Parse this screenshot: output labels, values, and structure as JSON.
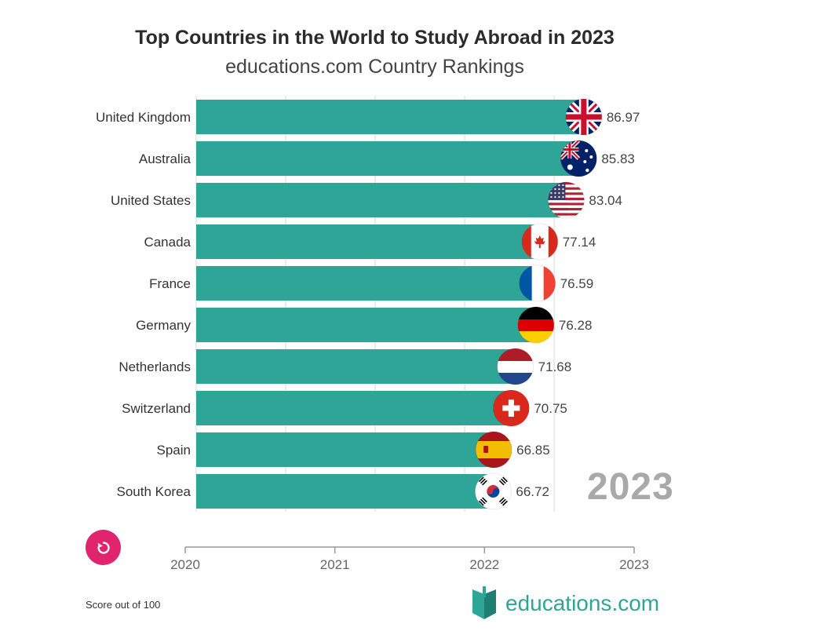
{
  "header": {
    "title": "Top Countries in the World to Study Abroad in 2023",
    "subtitle": "educations.com Country Rankings"
  },
  "current_year": "2023",
  "footnote": "Score out of 100",
  "brand": {
    "name": "educations",
    "tld": ".com"
  },
  "colors": {
    "bar": "#2ea597",
    "replay": "#e0246e",
    "year_label": "#a9a9a9"
  },
  "chart_data": {
    "type": "bar",
    "orientation": "horizontal",
    "categories": [
      "United Kingdom",
      "Australia",
      "United States",
      "Canada",
      "France",
      "Germany",
      "Netherlands",
      "Switzerland",
      "Spain",
      "South Korea"
    ],
    "values": [
      86.97,
      85.83,
      83.04,
      77.14,
      76.59,
      76.28,
      71.68,
      70.75,
      66.85,
      66.72
    ],
    "flags": [
      "uk-flag-icon",
      "australia-flag-icon",
      "usa-flag-icon",
      "canada-flag-icon",
      "france-flag-icon",
      "germany-flag-icon",
      "netherlands-flag-icon",
      "switzerland-flag-icon",
      "spain-flag-icon",
      "south-korea-flag-icon"
    ],
    "xlim": [
      0,
      90
    ],
    "grid": true,
    "timeline": {
      "ticks": [
        "2020",
        "2021",
        "2022",
        "2023"
      ],
      "current": "2023"
    }
  }
}
